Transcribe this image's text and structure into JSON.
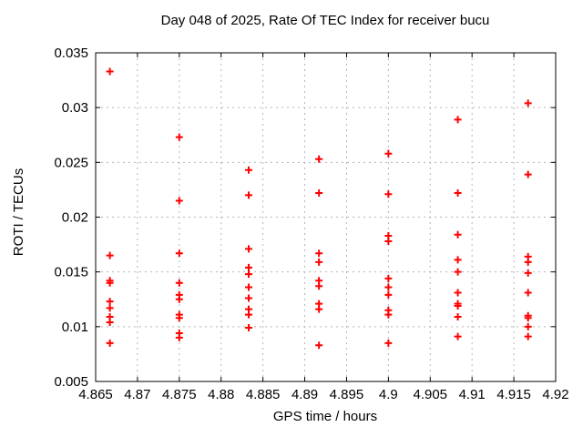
{
  "chart_data": {
    "type": "scatter",
    "title": "Day 048 of 2025, Rate Of TEC Index for receiver bucu",
    "xlabel": "GPS time / hours",
    "ylabel": "ROTI / TECUs",
    "xlim": [
      4.865,
      4.92
    ],
    "ylim": [
      0.005,
      0.035
    ],
    "grid": true,
    "legend_position": "none",
    "marker_shape": "plus",
    "marker_color": "#ff0000",
    "grid_color": "#b4b4b4",
    "border_color": "#000000",
    "x_ticks": [
      {
        "value": 4.865,
        "label": "4.865"
      },
      {
        "value": 4.87,
        "label": "4.87"
      },
      {
        "value": 4.875,
        "label": "4.875"
      },
      {
        "value": 4.88,
        "label": "4.88"
      },
      {
        "value": 4.885,
        "label": "4.885"
      },
      {
        "value": 4.89,
        "label": "4.89"
      },
      {
        "value": 4.895,
        "label": "4.895"
      },
      {
        "value": 4.9,
        "label": "4.9"
      },
      {
        "value": 4.905,
        "label": "4.905"
      },
      {
        "value": 4.91,
        "label": "4.91"
      },
      {
        "value": 4.915,
        "label": "4.915"
      },
      {
        "value": 4.92,
        "label": "4.92"
      }
    ],
    "y_ticks": [
      {
        "value": 0.005,
        "label": "0.005"
      },
      {
        "value": 0.01,
        "label": "0.01"
      },
      {
        "value": 0.015,
        "label": "0.015"
      },
      {
        "value": 0.02,
        "label": "0.02"
      },
      {
        "value": 0.025,
        "label": "0.025"
      },
      {
        "value": 0.03,
        "label": "0.03"
      },
      {
        "value": 0.035,
        "label": "0.035"
      }
    ],
    "series": [
      {
        "name": "ROTI",
        "clusters": [
          {
            "x": 4.8667,
            "y": [
              0.0333,
              0.0165,
              0.0142,
              0.014,
              0.0123,
              0.0117,
              0.0109,
              0.0104,
              0.0085
            ]
          },
          {
            "x": 4.875,
            "y": [
              0.0273,
              0.0215,
              0.0167,
              0.014,
              0.0129,
              0.0125,
              0.0111,
              0.0108,
              0.0094,
              0.009
            ]
          },
          {
            "x": 4.8833,
            "y": [
              0.0243,
              0.022,
              0.0171,
              0.0154,
              0.0148,
              0.0136,
              0.0126,
              0.0116,
              0.0111,
              0.0099
            ]
          },
          {
            "x": 4.8917,
            "y": [
              0.0253,
              0.0222,
              0.0167,
              0.0159,
              0.0142,
              0.0137,
              0.0121,
              0.0116,
              0.0083
            ]
          },
          {
            "x": 4.9,
            "y": [
              0.0258,
              0.0221,
              0.0183,
              0.0178,
              0.0144,
              0.0136,
              0.0129,
              0.0115,
              0.0111,
              0.0085
            ]
          },
          {
            "x": 4.9083,
            "y": [
              0.0289,
              0.0222,
              0.0184,
              0.0161,
              0.015,
              0.0131,
              0.0121,
              0.0119,
              0.0109,
              0.0091
            ]
          },
          {
            "x": 4.9167,
            "y": [
              0.0304,
              0.0239,
              0.0164,
              0.0159,
              0.0149,
              0.0131,
              0.011,
              0.0108,
              0.01,
              0.0091
            ]
          }
        ]
      }
    ]
  }
}
